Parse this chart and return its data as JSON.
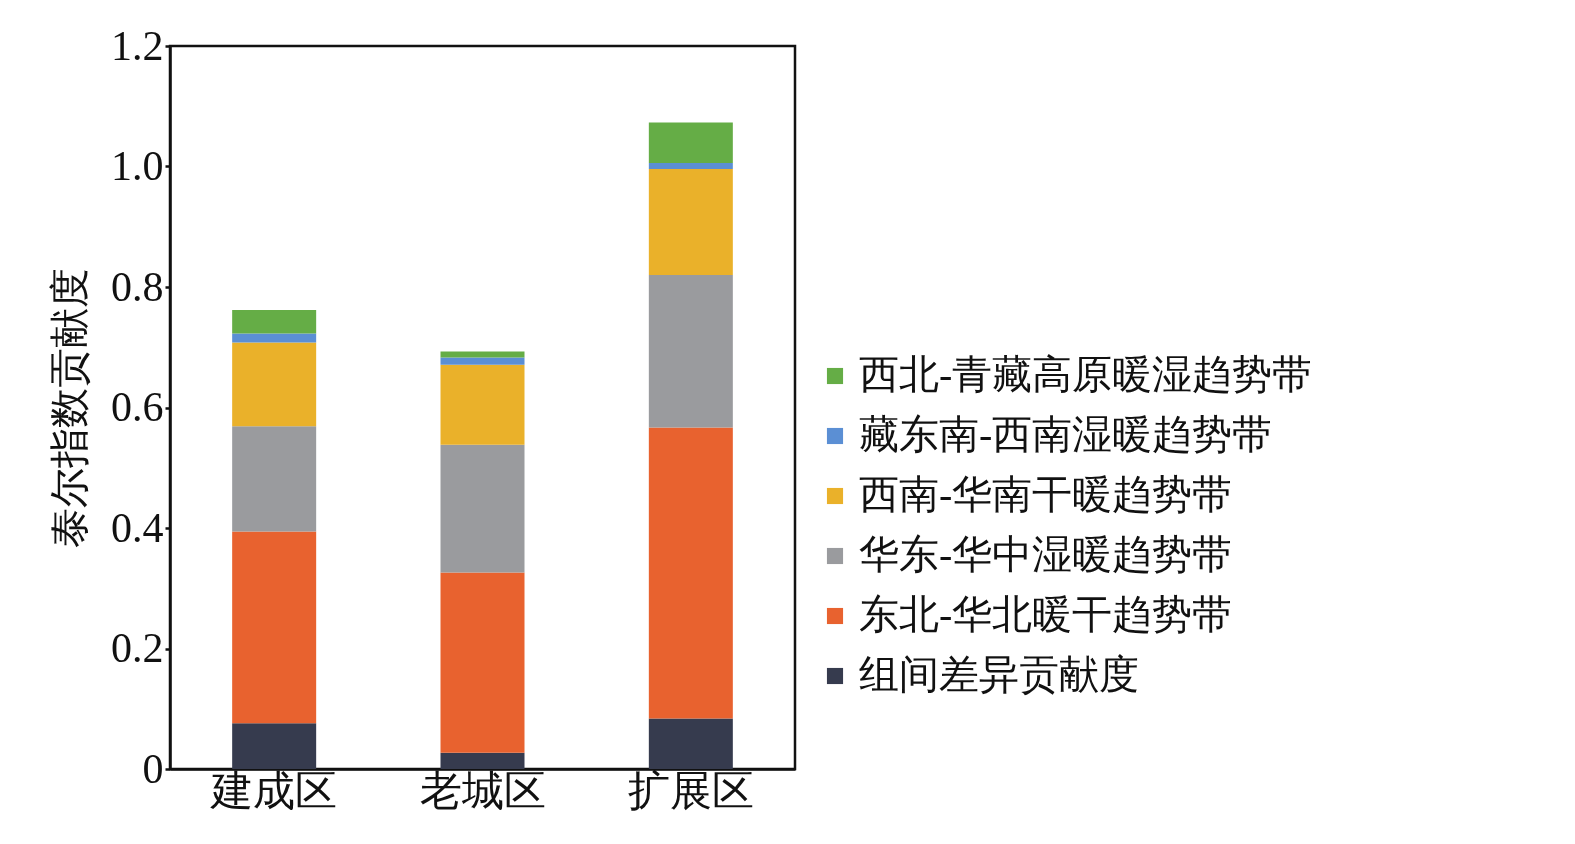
{
  "chart_data": {
    "type": "bar",
    "stacked": true,
    "ylabel": "泰尔指数贡献度",
    "categories": [
      "建成区",
      "老城区",
      "扩展区"
    ],
    "series": [
      {
        "name": "组间差异贡献度",
        "color": "#363b4e",
        "values": [
          0.076,
          0.027,
          0.084
        ]
      },
      {
        "name": "东北-华北暖干趋势带",
        "color": "#e8622f",
        "values": [
          0.318,
          0.299,
          0.483
        ]
      },
      {
        "name": "华东-华中湿暖趋势带",
        "color": "#9a9b9e",
        "values": [
          0.175,
          0.212,
          0.253
        ]
      },
      {
        "name": "西南-华南干暖趋势带",
        "color": "#eab12a",
        "values": [
          0.139,
          0.133,
          0.176
        ]
      },
      {
        "name": "藏东南-西南湿暖趋势带",
        "color": "#5b8fd4",
        "values": [
          0.015,
          0.012,
          0.01
        ]
      },
      {
        "name": "西北-青藏高原暖湿趋势带",
        "color": "#65ad46",
        "values": [
          0.039,
          0.01,
          0.067
        ]
      }
    ],
    "ylim": [
      0,
      1.2
    ],
    "yticks": [
      0,
      0.2,
      0.4,
      0.6,
      0.8,
      {
        "value": 1.0,
        "label": "1.0"
      },
      1.2
    ],
    "grid": false,
    "legend": "right"
  }
}
